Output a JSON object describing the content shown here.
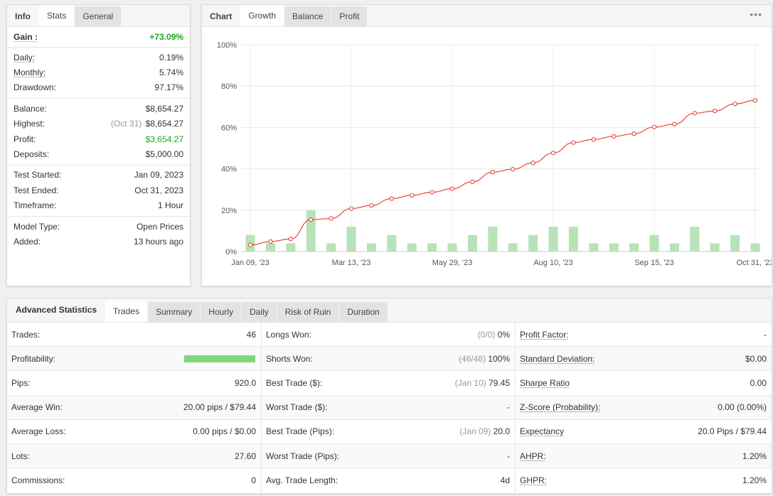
{
  "stats_panel": {
    "tabs": [
      "Info",
      "Stats",
      "General"
    ],
    "gain": {
      "label": "Gain :",
      "value": "+73.09%"
    },
    "group1": [
      {
        "label": "Daily:",
        "value": "0.19%"
      },
      {
        "label": "Monthly:",
        "value": "5.74%"
      },
      {
        "label": "Drawdown:",
        "value": "97.17%"
      }
    ],
    "balance": {
      "label": "Balance:",
      "value": "$8,654.27"
    },
    "highest": {
      "label": "Highest:",
      "note": "(Oct 31)",
      "value": "$8,654.27"
    },
    "profit": {
      "label": "Profit:",
      "value": "$3,654.27"
    },
    "deposits": {
      "label": "Deposits:",
      "value": "$5,000.00"
    },
    "group3": [
      {
        "label": "Test Started:",
        "value": "Jan 09, 2023"
      },
      {
        "label": "Test Ended:",
        "value": "Oct 31, 2023"
      },
      {
        "label": "Timeframe:",
        "value": "1 Hour"
      }
    ],
    "group4": [
      {
        "label": "Model Type:",
        "value": "Open Prices"
      },
      {
        "label": "Added:",
        "value": "13 hours ago"
      }
    ]
  },
  "chart_panel": {
    "tabs": [
      "Chart",
      "Growth",
      "Balance",
      "Profit"
    ],
    "more_icon": "ellipsis-icon"
  },
  "chart_data": {
    "type": "line",
    "y_ticks": [
      "100%",
      "80%",
      "60%",
      "40%",
      "20%",
      "0%"
    ],
    "ylim": [
      0,
      100
    ],
    "x_ticks": [
      "Jan 09, '23",
      "Mar 13, '23",
      "May 29, '23",
      "Aug 10, '23",
      "Sep 15, '23",
      "Oct 31, '23"
    ],
    "grid": true,
    "line_color": "#e8453c",
    "bar_color": "#b8e2b8",
    "growth": [
      3.2,
      4.8,
      6.1,
      15.4,
      16.0,
      20.8,
      22.3,
      25.6,
      27.2,
      28.7,
      30.4,
      33.7,
      38.4,
      39.8,
      42.9,
      47.7,
      52.7,
      54.2,
      55.7,
      57.0,
      60.2,
      61.6,
      66.9,
      68.0,
      71.4,
      73.1
    ],
    "bars": [
      8,
      4,
      4,
      20,
      4,
      12,
      4,
      8,
      4,
      4,
      4,
      8,
      12,
      4,
      8,
      12,
      12,
      4,
      4,
      4,
      8,
      4,
      12,
      4,
      8,
      4
    ]
  },
  "advanced": {
    "title": "Advanced Statistics",
    "tabs": [
      "Trades",
      "Summary",
      "Hourly",
      "Daily",
      "Risk of Ruin",
      "Duration"
    ],
    "col1": [
      {
        "label": "Trades:",
        "value": "46"
      },
      {
        "label": "Profitability:",
        "value": ""
      },
      {
        "label": "Pips:",
        "value": "920.0"
      },
      {
        "label": "Average Win:",
        "value": "20.00 pips / $79.44"
      },
      {
        "label": "Average Loss:",
        "value": "0.00 pips / $0.00"
      },
      {
        "label": "Lots:",
        "value": "27.60"
      },
      {
        "label": "Commissions:",
        "value": "0"
      }
    ],
    "profitability": 1.0,
    "col2": [
      {
        "label": "Longs Won:",
        "note": "(0/0)",
        "value": "0%"
      },
      {
        "label": "Shorts Won:",
        "note": "(46/46)",
        "value": "100%"
      },
      {
        "label": "Best Trade ($):",
        "note": "(Jan 10)",
        "value": "79.45"
      },
      {
        "label": "Worst Trade ($):",
        "note": "",
        "value": "-"
      },
      {
        "label": "Best Trade (Pips):",
        "note": "(Jan 09)",
        "value": "20.0"
      },
      {
        "label": "Worst Trade (Pips):",
        "note": "",
        "value": "-"
      },
      {
        "label": "Avg. Trade Length:",
        "note": "",
        "value": "4d"
      }
    ],
    "col3": [
      {
        "label": "Profit Factor:",
        "value": "-"
      },
      {
        "label": "Standard Deviation:",
        "value": "$0.00"
      },
      {
        "label": "Sharpe Ratio",
        "value": "0.00"
      },
      {
        "label": "Z-Score (Probability):",
        "value": "0.00 (0.00%)"
      },
      {
        "label": "Expectancy",
        "value": "20.0 Pips / $79.44"
      },
      {
        "label": "AHPR:",
        "value": "1.20%"
      },
      {
        "label": "GHPR:",
        "value": "1.20%"
      }
    ]
  }
}
